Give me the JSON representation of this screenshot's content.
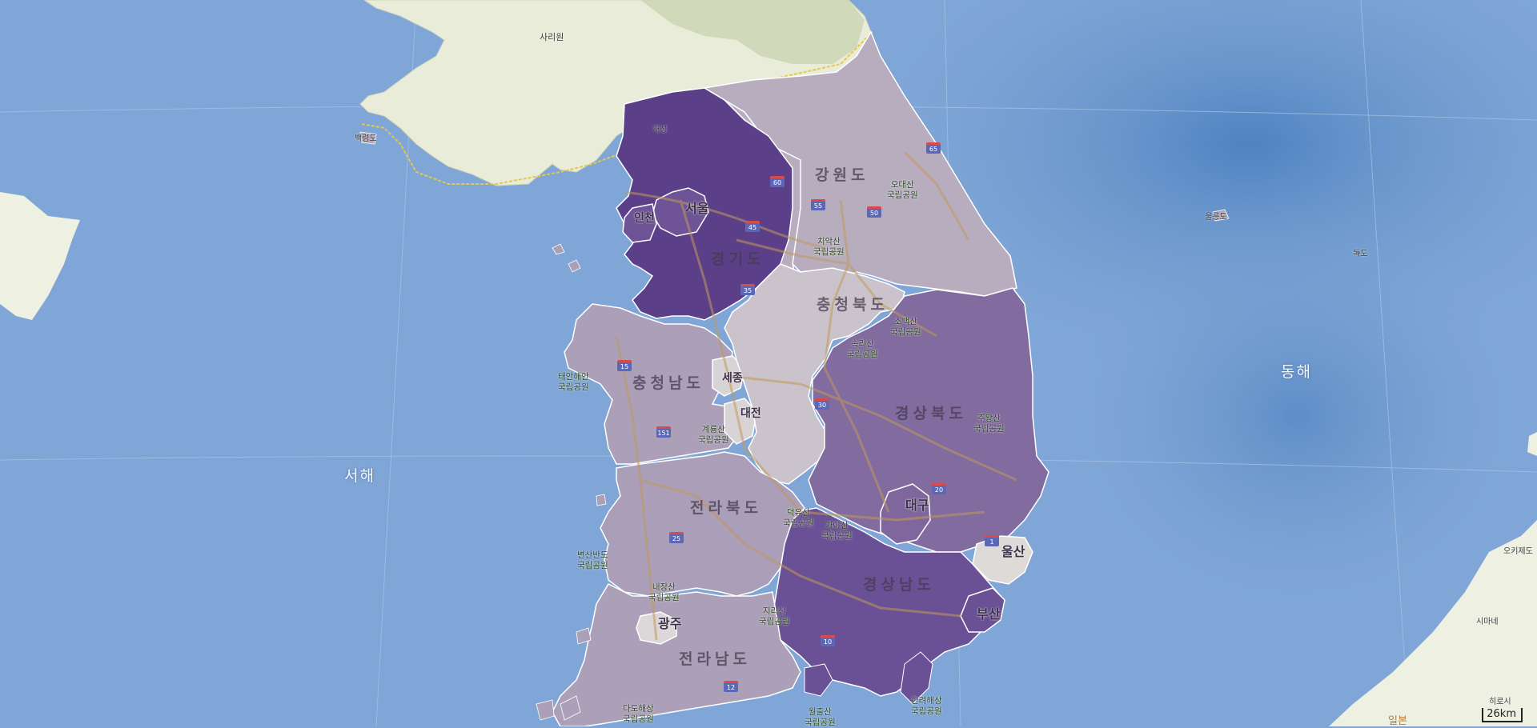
{
  "map": {
    "seas": {
      "west": "서해",
      "east": "동해"
    },
    "provinces": {
      "gangwon": "강원도",
      "gyeonggi": "경기도",
      "chungbuk": "충청북도",
      "chungnam": "충청남도",
      "gyeongbuk": "경상북도",
      "jeonbuk": "전라북도",
      "gyeongnam": "경상남도",
      "jeonnam": "전라남도"
    },
    "cities": {
      "seoul": "서울",
      "incheon": "인천",
      "sejong": "세종",
      "daejeon": "대전",
      "daegu": "대구",
      "ulsan": "울산",
      "busan": "부산",
      "gwangju": "광주"
    },
    "places": {
      "sariwon": "사리원",
      "kaesong": "개성",
      "baengnyeongdo": "백령도",
      "ulleungdo": "울릉도",
      "dokdo": "독도",
      "okiislands": "오키제도",
      "shimane": "시마네",
      "hiroshima": "히로시",
      "japan": "일본"
    },
    "parks": {
      "odaesan": "오대산\n국립공원",
      "chiaksan": "치악산\n국립공원",
      "sobaeksan": "소백산\n국립공원",
      "songnisan": "속리산\n국립공원",
      "taean": "태안해안\n국립공원",
      "gyeryongsan": "계룡산\n국립공원",
      "juwangsan": "주왕산\n국립공원",
      "gayasan": "가야산\n국립공원",
      "deogyusan": "덕유산\n국립공원",
      "byeonsanbando": "변산반도\n국립공원",
      "naejangsan": "내장산\n국립공원",
      "jirisan": "지리산\n국립공원",
      "hallyeohaesang": "한려해상\n국립공원",
      "wolchulsan": "월출산\n국립공원",
      "dadohae": "다도해상\n국립공원"
    },
    "highways": [
      "65",
      "60",
      "55",
      "50",
      "45",
      "35",
      "15",
      "25",
      "151",
      "30",
      "20",
      "1",
      "10",
      "12"
    ],
    "scale": "26km",
    "colors": {
      "sea": "#7fa6d6",
      "north_land": "#e9ecd9",
      "choropleth_dark": "#5a3d86",
      "choropleth_mid": "#826b9f",
      "choropleth_light": "#aca0b8",
      "choropleth_lightest": "#d8d4d6"
    }
  }
}
